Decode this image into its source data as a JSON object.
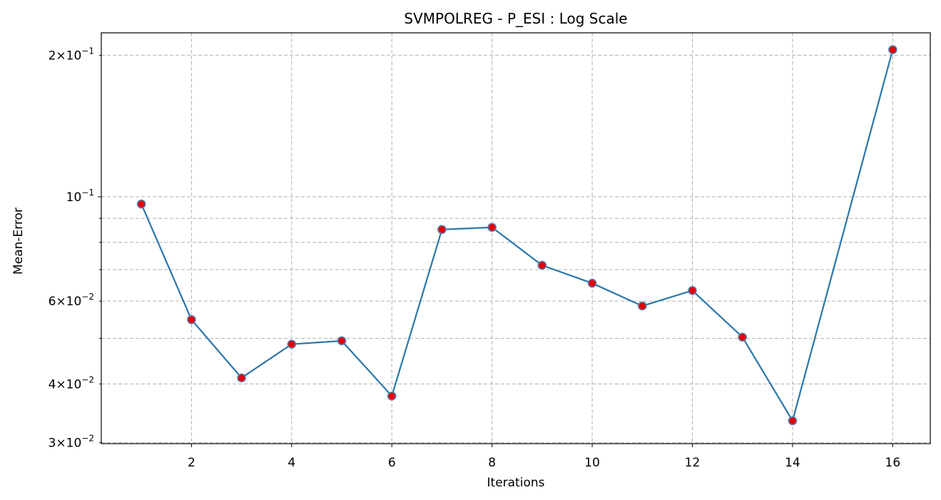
{
  "chart_data": {
    "type": "line",
    "title": "SVMPOLREG - P_ESI : Log Scale",
    "xlabel": "Iterations",
    "ylabel": "Mean-Error",
    "yscale": "log",
    "xlim": [
      0.2,
      16.75
    ],
    "ylim": [
      0.02986,
      0.2232
    ],
    "grid": true,
    "x_ticks": [
      2,
      4,
      6,
      8,
      10,
      12,
      14,
      16
    ],
    "y_major_ticks": [
      {
        "value": 0.1,
        "mantissa": "",
        "base": "10",
        "exp": "−1"
      }
    ],
    "y_minor_ticks": [
      {
        "value": 0.03,
        "mantissa": "3",
        "base": "10",
        "exp": "−2",
        "label": true
      },
      {
        "value": 0.04,
        "mantissa": "4",
        "base": "10",
        "exp": "−2",
        "label": true
      },
      {
        "value": 0.05,
        "label": false
      },
      {
        "value": 0.06,
        "mantissa": "6",
        "base": "10",
        "exp": "−2",
        "label": true
      },
      {
        "value": 0.07,
        "label": false
      },
      {
        "value": 0.08,
        "label": false
      },
      {
        "value": 0.09,
        "label": false
      },
      {
        "value": 0.2,
        "mantissa": "2",
        "base": "10",
        "exp": "−1",
        "label": true
      }
    ],
    "series": [
      {
        "x": [
          1,
          2,
          3,
          4,
          5,
          6,
          7,
          8,
          9,
          10,
          11,
          12,
          13,
          14,
          16
        ],
        "y": [
          0.0965,
          0.0548,
          0.0412,
          0.0486,
          0.0494,
          0.0377,
          0.0852,
          0.0861,
          0.0715,
          0.0655,
          0.0586,
          0.0632,
          0.0503,
          0.0334,
          0.2055
        ],
        "line_color": "#2b76a9",
        "marker_face": "#e60000",
        "marker_edge": "#5b7fb0"
      }
    ]
  }
}
